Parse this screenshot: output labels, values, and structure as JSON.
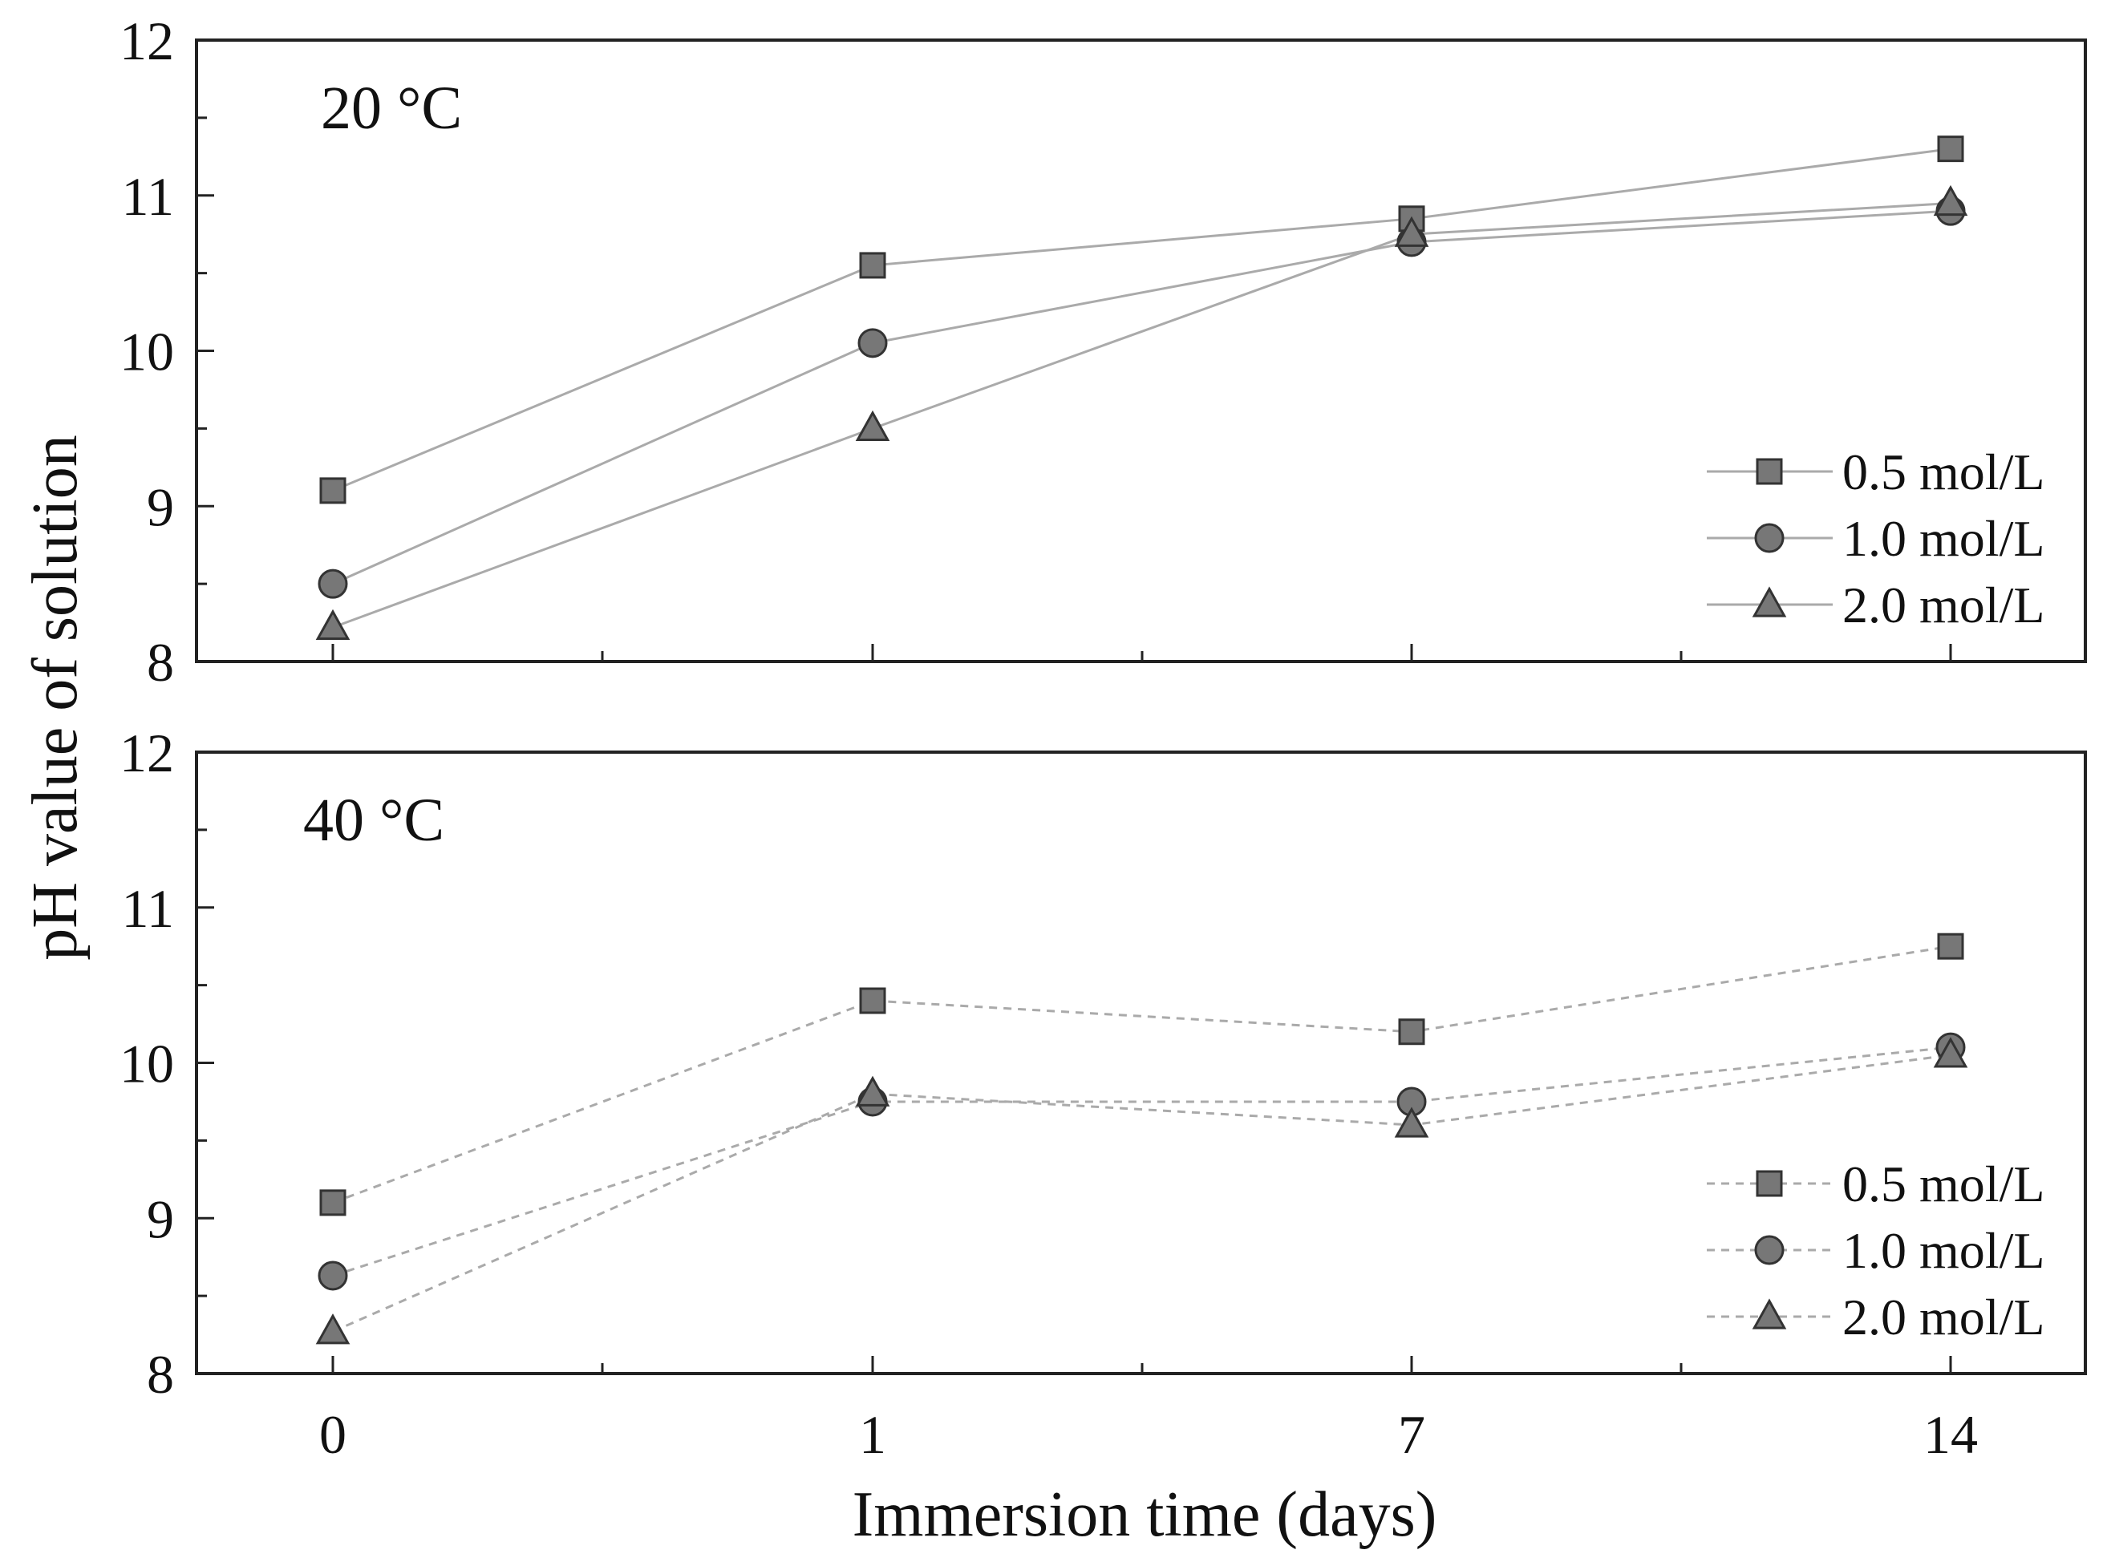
{
  "chart_data": {
    "type": "line",
    "xlabel": "Immersion time (days)",
    "ylabel": "pH value of solution",
    "categories": [
      "0",
      "1",
      "7",
      "14"
    ],
    "colors": {
      "marker_fill": "#777777",
      "marker_stroke": "#333333",
      "line": "#aaaaaa",
      "axis": "#222222"
    },
    "panels": [
      {
        "label": "20 °C",
        "ylim": [
          8,
          12
        ],
        "yticks": [
          "8",
          "9",
          "10",
          "11",
          "12"
        ],
        "line_style": "solid",
        "series": [
          {
            "name": "0.5 mol/L",
            "marker": "square",
            "values": [
              9.1,
              10.55,
              10.85,
              11.3
            ]
          },
          {
            "name": "1.0 mol/L",
            "marker": "circle",
            "values": [
              8.5,
              10.05,
              10.7,
              10.9
            ]
          },
          {
            "name": "2.0 mol/L",
            "marker": "triangle",
            "values": [
              8.22,
              9.5,
              10.75,
              10.95
            ]
          }
        ]
      },
      {
        "label": "40 °C",
        "ylim": [
          8,
          12
        ],
        "yticks": [
          "8",
          "9",
          "10",
          "11",
          "12"
        ],
        "line_style": "dashed",
        "series": [
          {
            "name": "0.5 mol/L",
            "marker": "square",
            "values": [
              9.1,
              10.4,
              10.2,
              10.75
            ]
          },
          {
            "name": "1.0 mol/L",
            "marker": "circle",
            "values": [
              8.63,
              9.75,
              9.75,
              10.1
            ]
          },
          {
            "name": "2.0 mol/L",
            "marker": "triangle",
            "values": [
              8.27,
              9.8,
              9.6,
              10.05
            ]
          }
        ]
      }
    ]
  }
}
